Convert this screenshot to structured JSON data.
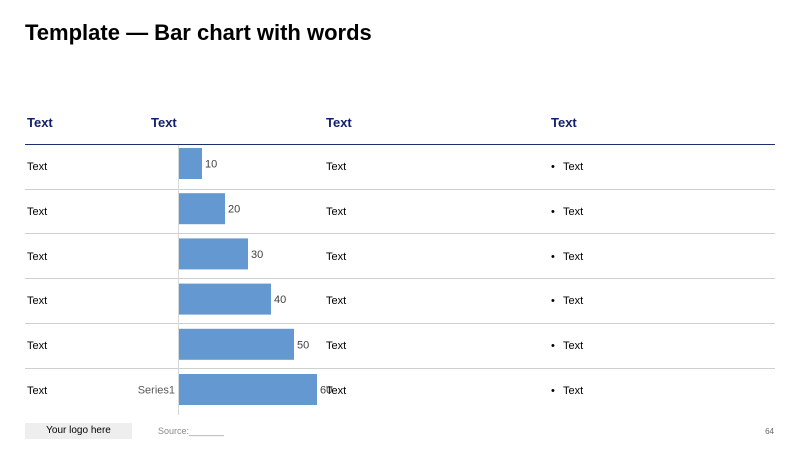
{
  "title": "Template — Bar chart with words",
  "headers": [
    "Text",
    "Text",
    "Text",
    "Text"
  ],
  "rows": [
    {
      "col1": "Text",
      "col3": "Text",
      "col4": "Text"
    },
    {
      "col1": "Text",
      "col3": "Text",
      "col4": "Text"
    },
    {
      "col1": "Text",
      "col3": "Text",
      "col4": "Text"
    },
    {
      "col1": "Text",
      "col3": "Text",
      "col4": "Text"
    },
    {
      "col1": "Text",
      "col3": "Text",
      "col4": "Text"
    },
    {
      "col1": "Text",
      "col3": "Text",
      "col4": "Text"
    }
  ],
  "bullet_glyph": "•",
  "chart_data": {
    "type": "bar",
    "orientation": "horizontal",
    "categories": [
      "",
      "",
      "",
      "",
      "",
      ""
    ],
    "series": [
      {
        "name": "Series1",
        "values": [
          10,
          20,
          30,
          40,
          50,
          60
        ],
        "color": "#6399d0"
      }
    ],
    "xlim": [
      0,
      60
    ],
    "data_labels": [
      "10",
      "20",
      "30",
      "40",
      "50",
      "60"
    ],
    "grid": false,
    "legend": "none"
  },
  "footer": {
    "logo_text": "Your logo here",
    "source": "Source:_______",
    "page_number": "64"
  }
}
